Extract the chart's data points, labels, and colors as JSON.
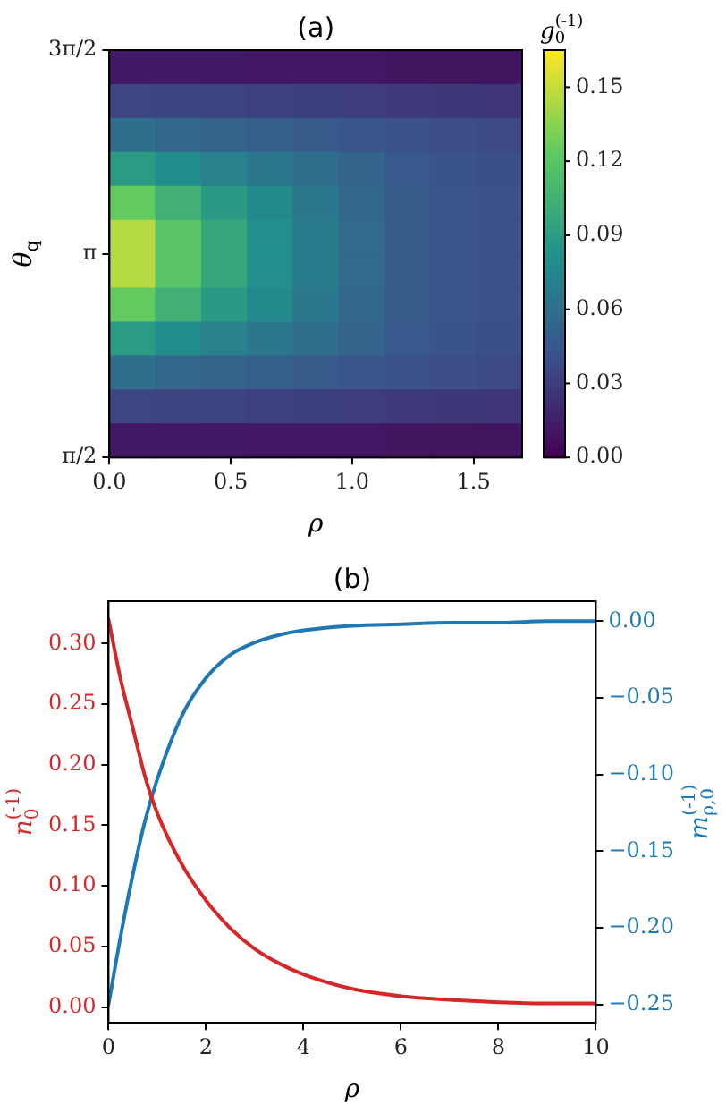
{
  "chart_data": [
    {
      "type": "heatmap",
      "title": "(a)",
      "xlabel": "ρ",
      "ylabel": "θ$_{q}$",
      "clabel": "g$_{0}$$^{(-1)}$",
      "x": [
        0.094,
        0.283,
        0.472,
        0.661,
        0.85,
        1.039,
        1.228,
        1.417,
        1.606
      ],
      "y": [
        4.5815,
        4.3197,
        4.0579,
        3.7961,
        3.5343,
        3.2725,
        3.0107,
        2.7489,
        2.4871,
        2.2253,
        1.9635,
        1.7017
      ],
      "xlim": [
        0,
        1.7
      ],
      "xticks": [
        {
          "value": 0,
          "label": "0.0"
        },
        {
          "value": 0.5,
          "label": "0.5"
        },
        {
          "value": 1,
          "label": "1.0"
        },
        {
          "value": 1.5,
          "label": "1.5"
        }
      ],
      "ylim": [
        1.5708,
        4.7124
      ],
      "yticks": [
        {
          "value": 1.5708,
          "label": "π/2"
        },
        {
          "value": 3.1416,
          "label": "π"
        },
        {
          "value": 4.7124,
          "label": "3π/2"
        }
      ],
      "clim": [
        0,
        0.165
      ],
      "cticks": [
        {
          "value": 0,
          "label": "0.00"
        },
        {
          "value": 0.03,
          "label": "0.03"
        },
        {
          "value": 0.06,
          "label": "0.06"
        },
        {
          "value": 0.09,
          "label": "0.09"
        },
        {
          "value": 0.12,
          "label": "0.12"
        },
        {
          "value": 0.15,
          "label": "0.15"
        }
      ],
      "cells": [
        [
          0.012,
          0.012,
          0.012,
          0.011,
          0.011,
          0.011,
          0.01,
          0.01,
          0.01
        ],
        [
          0.035,
          0.034,
          0.033,
          0.032,
          0.031,
          0.03,
          0.029,
          0.028,
          0.027
        ],
        [
          0.06,
          0.055,
          0.052,
          0.05,
          0.047,
          0.044,
          0.041,
          0.039,
          0.037
        ],
        [
          0.09,
          0.08,
          0.072,
          0.066,
          0.059,
          0.053,
          0.046,
          0.042,
          0.04
        ],
        [
          0.125,
          0.105,
          0.089,
          0.077,
          0.066,
          0.056,
          0.047,
          0.043,
          0.041
        ],
        [
          0.146,
          0.12,
          0.098,
          0.082,
          0.068,
          0.057,
          0.047,
          0.043,
          0.041
        ],
        [
          0.146,
          0.12,
          0.098,
          0.082,
          0.068,
          0.057,
          0.047,
          0.043,
          0.041
        ],
        [
          0.125,
          0.105,
          0.089,
          0.077,
          0.066,
          0.056,
          0.047,
          0.043,
          0.041
        ],
        [
          0.09,
          0.08,
          0.072,
          0.066,
          0.059,
          0.053,
          0.046,
          0.042,
          0.04
        ],
        [
          0.06,
          0.055,
          0.052,
          0.05,
          0.047,
          0.044,
          0.041,
          0.039,
          0.037
        ],
        [
          0.035,
          0.034,
          0.033,
          0.032,
          0.031,
          0.03,
          0.029,
          0.028,
          0.027
        ],
        [
          0.012,
          0.012,
          0.012,
          0.011,
          0.011,
          0.011,
          0.01,
          0.01,
          0.01
        ]
      ]
    },
    {
      "type": "line",
      "title": "(b)",
      "xlabel": "ρ",
      "ylabel": "n$_{0}$$^{(-1)}$",
      "y2label": "m$_{ρ,0}$$^{(-1)}$",
      "x": [
        0,
        0.25,
        0.5,
        0.75,
        1,
        1.5,
        2,
        2.5,
        3,
        3.5,
        4,
        5,
        6,
        7,
        8,
        9,
        10
      ],
      "xlim": [
        0,
        10
      ],
      "xticks": [
        0,
        2,
        4,
        6,
        8,
        10
      ],
      "ylim": [
        -0.013,
        0.335
      ],
      "yticks": [
        {
          "value": 0,
          "label": "0.00"
        },
        0.05,
        {
          "value": 0.1,
          "label": "0.10"
        },
        0.15,
        {
          "value": 0.2,
          "label": "0.20"
        },
        0.25,
        {
          "value": 0.3,
          "label": "0.30"
        }
      ],
      "y2lim": [
        -0.262,
        0.013
      ],
      "y2ticks": [
        {
          "value": -0.25,
          "label": "−0.25"
        },
        {
          "value": -0.2,
          "label": "−0.20"
        },
        {
          "value": -0.15,
          "label": "−0.15"
        },
        {
          "value": -0.1,
          "label": "−0.10"
        },
        {
          "value": -0.05,
          "label": "−0.05"
        },
        {
          "value": 0,
          "label": "0.00"
        }
      ],
      "series": [
        {
          "color": "#d62728",
          "values": [
            0.32,
            0.27,
            0.23,
            0.19,
            0.16,
            0.118,
            0.088,
            0.065,
            0.048,
            0.036,
            0.027,
            0.015,
            0.009,
            0.006,
            0.004,
            0.003,
            0.003
          ]
        },
        {
          "color": "#1f77b4",
          "axis": "y2",
          "values": [
            -0.25,
            -0.205,
            -0.165,
            -0.13,
            -0.103,
            -0.062,
            -0.037,
            -0.022,
            -0.014,
            -0.009,
            -0.006,
            -0.003,
            -0.002,
            -0.001,
            -0.001,
            0,
            0
          ]
        }
      ]
    }
  ]
}
